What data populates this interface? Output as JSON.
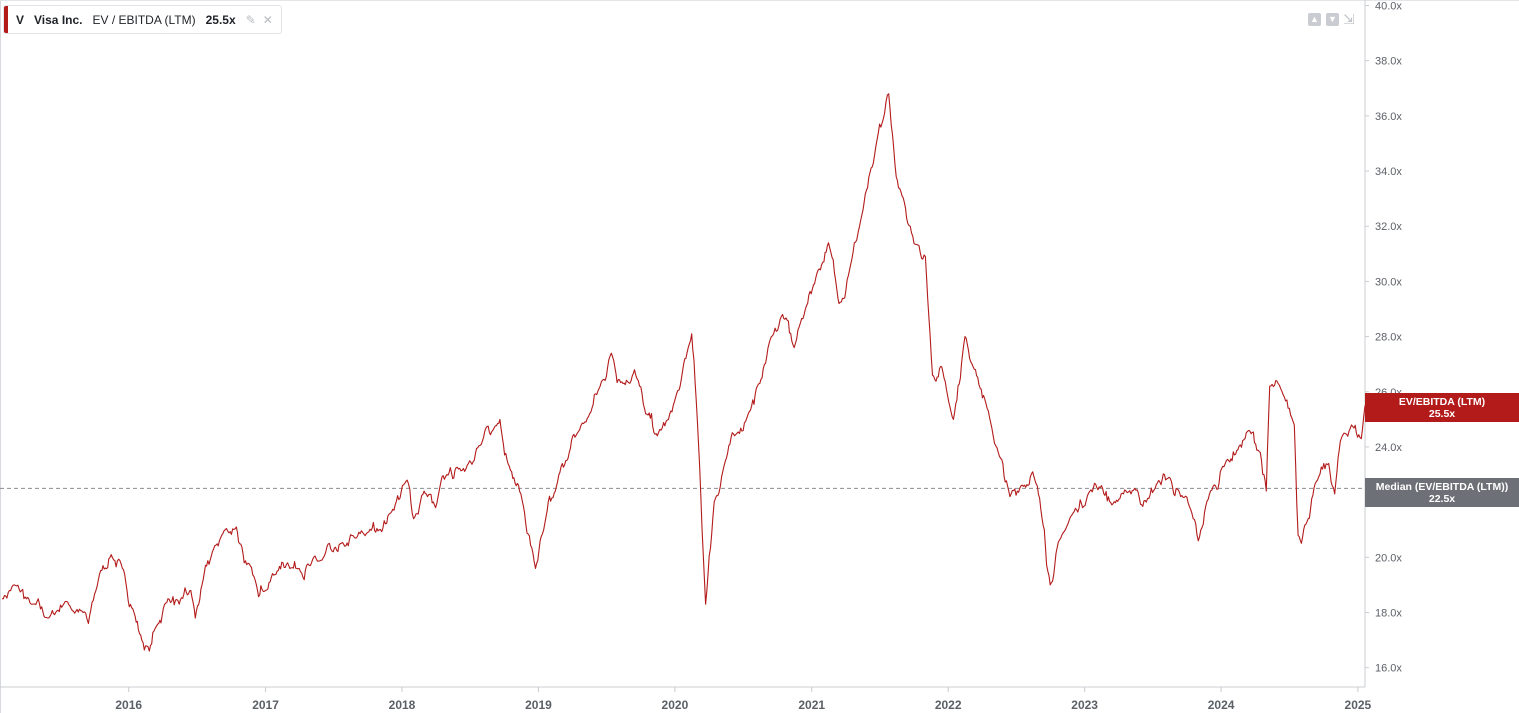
{
  "legend": {
    "ticker": "V",
    "company": "Visa Inc.",
    "metric": "EV / EBITDA (LTM)",
    "value": "25.5x",
    "style_icon": "paint-brush-icon",
    "close_icon": "close-icon"
  },
  "toolbar": {
    "up_icon": "arrow-up-icon",
    "down_icon": "arrow-down-icon",
    "collapse_icon": "collapse-icon"
  },
  "flags": {
    "current": {
      "label": "EV/EBITDA (LTM)",
      "value": "25.5x"
    },
    "median": {
      "label": "Median (EV/EBITDA (LTM))",
      "value": "22.5x"
    }
  },
  "colors": {
    "series": "#b31b1b",
    "median_line": "#8a8d92",
    "median_flag": "#6d7076",
    "axis_text": "#5b5f66"
  },
  "chart_data": {
    "type": "line",
    "title": "",
    "xlabel": "",
    "ylabel": "",
    "x_ticks": [
      "2016",
      "2017",
      "2018",
      "2019",
      "2020",
      "2021",
      "2022",
      "2023",
      "2024",
      "2025"
    ],
    "y_ticks": [
      "16.0x",
      "18.0x",
      "20.0x",
      "22.0x",
      "24.0x",
      "26.0x",
      "28.0x",
      "30.0x",
      "32.0x",
      "34.0x",
      "36.0x",
      "38.0x",
      "40.0x"
    ],
    "ylim": [
      15.3,
      40.2
    ],
    "xlim": [
      "2015-01-27",
      "2025-01-20"
    ],
    "median": 22.5,
    "series": [
      {
        "name": "EV / EBITDA (LTM)",
        "points": [
          [
            "2015-01-27",
            18.5
          ],
          [
            "2015-03-01",
            19.0
          ],
          [
            "2015-04-15",
            18.3
          ],
          [
            "2015-06-01",
            17.8
          ],
          [
            "2015-07-15",
            18.4
          ],
          [
            "2015-09-01",
            18.0
          ],
          [
            "2015-09-15",
            17.6
          ],
          [
            "2015-10-15",
            19.4
          ],
          [
            "2015-11-15",
            20.1
          ],
          [
            "2015-12-15",
            19.6
          ],
          [
            "2016-01-15",
            18.0
          ],
          [
            "2016-02-05",
            17.0
          ],
          [
            "2016-02-25",
            16.6
          ],
          [
            "2016-03-15",
            17.5
          ],
          [
            "2016-04-15",
            18.5
          ],
          [
            "2016-05-15",
            18.3
          ],
          [
            "2016-06-15",
            18.8
          ],
          [
            "2016-06-27",
            17.8
          ],
          [
            "2016-07-15",
            19.0
          ],
          [
            "2016-08-15",
            20.3
          ],
          [
            "2016-09-15",
            21.0
          ],
          [
            "2016-10-15",
            21.1
          ],
          [
            "2016-11-05",
            19.8
          ],
          [
            "2016-12-01",
            19.3
          ],
          [
            "2017-01-01",
            18.8
          ],
          [
            "2017-02-01",
            19.5
          ],
          [
            "2017-03-01",
            19.8
          ],
          [
            "2017-04-01",
            19.6
          ],
          [
            "2017-05-01",
            19.7
          ],
          [
            "2017-06-01",
            19.9
          ],
          [
            "2017-07-01",
            20.2
          ],
          [
            "2017-08-01",
            20.4
          ],
          [
            "2017-09-01",
            20.7
          ],
          [
            "2017-10-01",
            20.9
          ],
          [
            "2017-11-01",
            21.0
          ],
          [
            "2017-12-01",
            21.6
          ],
          [
            "2018-01-15",
            22.8
          ],
          [
            "2018-02-01",
            21.4
          ],
          [
            "2018-03-01",
            22.4
          ],
          [
            "2018-04-01",
            21.8
          ],
          [
            "2018-05-01",
            23.0
          ],
          [
            "2018-06-01",
            23.2
          ],
          [
            "2018-07-01",
            23.5
          ],
          [
            "2018-08-01",
            24.1
          ],
          [
            "2018-09-01",
            24.6
          ],
          [
            "2018-09-20",
            25.0
          ],
          [
            "2018-10-15",
            23.3
          ],
          [
            "2018-11-15",
            22.3
          ],
          [
            "2018-12-24",
            19.6
          ],
          [
            "2019-01-15",
            21.0
          ],
          [
            "2019-02-15",
            22.4
          ],
          [
            "2019-03-15",
            23.5
          ],
          [
            "2019-04-15",
            24.5
          ],
          [
            "2019-05-15",
            25.1
          ],
          [
            "2019-06-15",
            26.2
          ],
          [
            "2019-07-15",
            27.4
          ],
          [
            "2019-08-15",
            26.3
          ],
          [
            "2019-09-15",
            26.8
          ],
          [
            "2019-10-15",
            25.2
          ],
          [
            "2019-11-15",
            24.4
          ],
          [
            "2019-12-15",
            25.0
          ],
          [
            "2020-01-15",
            26.2
          ],
          [
            "2020-02-15",
            28.1
          ],
          [
            "2020-03-01",
            25.0
          ],
          [
            "2020-03-23",
            18.3
          ],
          [
            "2020-04-15",
            22.0
          ],
          [
            "2020-05-15",
            23.5
          ],
          [
            "2020-06-15",
            24.5
          ],
          [
            "2020-07-15",
            25.2
          ],
          [
            "2020-08-15",
            26.3
          ],
          [
            "2020-09-15",
            28.0
          ],
          [
            "2020-10-15",
            28.8
          ],
          [
            "2020-11-15",
            27.6
          ],
          [
            "2020-12-15",
            29.0
          ],
          [
            "2021-01-15",
            30.3
          ],
          [
            "2021-02-15",
            31.4
          ],
          [
            "2021-03-15",
            29.2
          ],
          [
            "2021-04-15",
            30.6
          ],
          [
            "2021-05-15",
            32.4
          ],
          [
            "2021-06-15",
            34.3
          ],
          [
            "2021-07-15",
            36.1
          ],
          [
            "2021-07-26",
            36.8
          ],
          [
            "2021-08-15",
            33.8
          ],
          [
            "2021-09-15",
            32.1
          ],
          [
            "2021-10-15",
            31.3
          ],
          [
            "2021-11-01",
            30.9
          ],
          [
            "2021-11-20",
            26.6
          ],
          [
            "2021-12-15",
            26.9
          ],
          [
            "2022-01-15",
            25.0
          ],
          [
            "2022-02-15",
            28.0
          ],
          [
            "2022-03-15",
            26.8
          ],
          [
            "2022-04-15",
            25.4
          ],
          [
            "2022-05-15",
            23.8
          ],
          [
            "2022-06-15",
            22.2
          ],
          [
            "2022-07-15",
            22.6
          ],
          [
            "2022-08-15",
            23.1
          ],
          [
            "2022-09-15",
            21.0
          ],
          [
            "2022-10-01",
            19.0
          ],
          [
            "2022-11-01",
            20.8
          ],
          [
            "2022-12-01",
            21.6
          ],
          [
            "2023-01-15",
            22.4
          ],
          [
            "2023-02-15",
            22.6
          ],
          [
            "2023-03-15",
            21.9
          ],
          [
            "2023-04-15",
            22.3
          ],
          [
            "2023-05-15",
            22.5
          ],
          [
            "2023-06-15",
            22.0
          ],
          [
            "2023-07-15",
            22.7
          ],
          [
            "2023-08-15",
            22.9
          ],
          [
            "2023-09-15",
            22.2
          ],
          [
            "2023-10-15",
            21.6
          ],
          [
            "2023-11-01",
            20.6
          ],
          [
            "2023-12-01",
            22.3
          ],
          [
            "2024-01-15",
            23.5
          ],
          [
            "2024-02-15",
            23.9
          ],
          [
            "2024-03-15",
            24.6
          ],
          [
            "2024-04-15",
            23.8
          ],
          [
            "2024-05-01",
            22.4
          ],
          [
            "2024-05-10",
            26.2
          ],
          [
            "2024-06-15",
            25.9
          ],
          [
            "2024-07-15",
            24.8
          ],
          [
            "2024-07-25",
            20.8
          ],
          [
            "2024-08-15",
            21.2
          ],
          [
            "2024-09-15",
            22.8
          ],
          [
            "2024-10-15",
            23.4
          ],
          [
            "2024-10-31",
            22.3
          ],
          [
            "2024-11-15",
            24.2
          ],
          [
            "2024-12-15",
            24.8
          ],
          [
            "2025-01-10",
            24.3
          ],
          [
            "2025-01-20",
            25.5
          ]
        ]
      }
    ],
    "grid": false,
    "legend_position": "top-left"
  }
}
